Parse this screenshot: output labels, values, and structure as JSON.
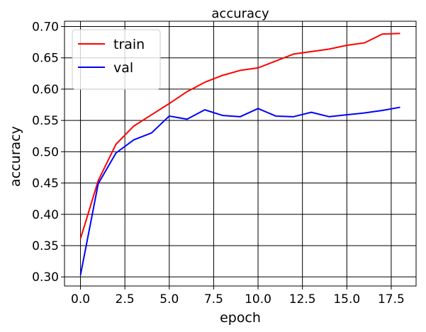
{
  "chart_data": {
    "type": "line",
    "title": "accuracy",
    "xlabel": "epoch",
    "ylabel": "accuracy",
    "xlim": [
      -0.9,
      18.9
    ],
    "ylim": [
      0.2855,
      0.7085
    ],
    "x_ticks": [
      0.0,
      2.5,
      5.0,
      7.5,
      10.0,
      12.5,
      15.0,
      17.5
    ],
    "x_tick_labels": [
      "0.0",
      "2.5",
      "5.0",
      "7.5",
      "10.0",
      "12.5",
      "15.0",
      "17.5"
    ],
    "y_ticks": [
      0.3,
      0.35,
      0.4,
      0.45,
      0.5,
      0.55,
      0.6,
      0.65,
      0.7
    ],
    "y_tick_labels": [
      "0.30",
      "0.35",
      "0.40",
      "0.45",
      "0.50",
      "0.55",
      "0.60",
      "0.65",
      "0.70"
    ],
    "grid": true,
    "legend_position": "top-left",
    "x": [
      0,
      1,
      2,
      3,
      4,
      5,
      6,
      7,
      8,
      9,
      10,
      11,
      12,
      13,
      14,
      15,
      16,
      17,
      18
    ],
    "series": [
      {
        "name": "train",
        "color": "#ff0000",
        "values": [
          0.361,
          0.454,
          0.512,
          0.541,
          0.559,
          0.577,
          0.596,
          0.611,
          0.622,
          0.63,
          0.634,
          0.645,
          0.656,
          0.66,
          0.664,
          0.67,
          0.674,
          0.688,
          0.689
        ]
      },
      {
        "name": "val",
        "color": "#0000ff",
        "values": [
          0.303,
          0.449,
          0.498,
          0.519,
          0.53,
          0.557,
          0.552,
          0.567,
          0.558,
          0.556,
          0.569,
          0.557,
          0.556,
          0.563,
          0.556,
          0.559,
          0.562,
          0.566,
          0.571
        ]
      }
    ]
  }
}
